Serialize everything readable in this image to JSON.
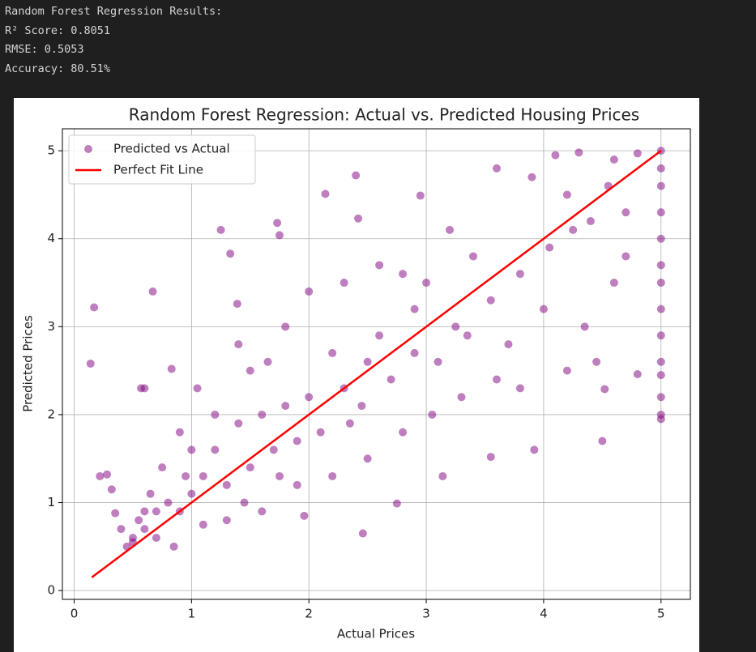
{
  "output_lines": [
    "Random Forest Regression Results:",
    "R² Score: 0.8051",
    "RMSE: 0.5053",
    "Accuracy: 80.51%"
  ],
  "chart_data": {
    "type": "scatter",
    "title": "Random Forest Regression: Actual vs. Predicted Housing Prices",
    "x_label": "Actual Prices",
    "y_label": "Predicted Prices",
    "xlim": [
      -0.1,
      5.25
    ],
    "ylim": [
      -0.1,
      5.25
    ],
    "xticks": [
      0,
      1,
      2,
      3,
      4,
      5
    ],
    "yticks": [
      0,
      1,
      2,
      3,
      4,
      5
    ],
    "grid": true,
    "legend": "upper left",
    "series": [
      {
        "name": "Predicted vs Actual",
        "type": "scatter",
        "color": "purple",
        "x": [
          0.17,
          0.14,
          0.67,
          0.57,
          0.22,
          0.28,
          0.32,
          1.25,
          1.33,
          1.39,
          2.14,
          2.4,
          2.42,
          1.73,
          1.75,
          2.95,
          2.46,
          2.75,
          1.96,
          3.14,
          3.55,
          3.92,
          4.5,
          4.52,
          4.8,
          0.85,
          0.83,
          0.6,
          0.5,
          0.6,
          0.7,
          0.8,
          5,
          5,
          5,
          5,
          5,
          5,
          5,
          5,
          5,
          5,
          5,
          5,
          5,
          5,
          4.1,
          4.3,
          4.6,
          4.8,
          4.2,
          4.4,
          3.8,
          4.0,
          4.6,
          4.7,
          3.6,
          3.9,
          4.2,
          4.45,
          4.35,
          3.6,
          3.3,
          3.1,
          3.7,
          3.4,
          3.2,
          3.0,
          2.9,
          2.8,
          2.6,
          2.5,
          2.3,
          2.2,
          2.1,
          2.0,
          1.9,
          1.8,
          1.7,
          1.6,
          1.5,
          1.4,
          1.3,
          1.2,
          1.1,
          1.0,
          0.9,
          1.0,
          1.2,
          1.5,
          1.8,
          2.0,
          2.3,
          2.6,
          2.8,
          2.5,
          2.2,
          1.9,
          1.6,
          1.3,
          1.1,
          0.7,
          0.5,
          0.45,
          0.55,
          0.65,
          0.75,
          0.9,
          1.05,
          1.4,
          1.65,
          2.45,
          2.7,
          3.05,
          3.35,
          3.55,
          3.8,
          4.05,
          4.25,
          4.55,
          4.7,
          3.25,
          2.9,
          2.35,
          1.75,
          1.45,
          0.95,
          0.6,
          0.4,
          0.35
        ],
        "y": [
          3.22,
          2.58,
          3.4,
          2.3,
          1.3,
          1.32,
          1.15,
          4.1,
          3.83,
          3.26,
          4.51,
          4.72,
          4.23,
          4.18,
          4.04,
          4.49,
          0.65,
          0.99,
          0.85,
          1.3,
          1.52,
          1.6,
          1.7,
          2.29,
          2.46,
          0.5,
          2.52,
          2.3,
          0.6,
          0.7,
          0.9,
          1.0,
          5.0,
          4.8,
          4.6,
          4.3,
          4.0,
          3.7,
          3.5,
          3.2,
          2.9,
          2.6,
          2.45,
          2.2,
          2.0,
          1.95,
          4.95,
          4.98,
          4.9,
          4.97,
          4.5,
          4.2,
          3.6,
          3.2,
          3.5,
          3.8,
          4.8,
          4.7,
          2.5,
          2.6,
          3.0,
          2.4,
          2.2,
          2.6,
          2.8,
          3.8,
          4.1,
          3.5,
          3.2,
          3.6,
          2.9,
          2.6,
          2.3,
          2.7,
          1.8,
          2.2,
          1.7,
          2.1,
          1.6,
          2.0,
          1.4,
          1.9,
          1.2,
          1.6,
          1.3,
          1.1,
          0.9,
          1.6,
          2.0,
          2.5,
          3.0,
          3.4,
          3.5,
          3.7,
          1.8,
          1.5,
          1.3,
          1.2,
          0.9,
          0.8,
          0.75,
          0.6,
          0.55,
          0.5,
          0.8,
          1.1,
          1.4,
          1.8,
          2.3,
          2.8,
          2.6,
          2.1,
          2.4,
          2.0,
          2.9,
          3.3,
          2.3,
          3.9,
          4.1,
          4.6,
          4.3,
          3.0,
          2.7,
          1.9,
          1.3,
          1.0,
          1.3,
          0.9,
          0.7,
          0.88
        ]
      },
      {
        "name": "Perfect Fit Line",
        "type": "line",
        "color": "red",
        "x": [
          0.15,
          5
        ],
        "y": [
          0.15,
          5
        ]
      }
    ]
  }
}
